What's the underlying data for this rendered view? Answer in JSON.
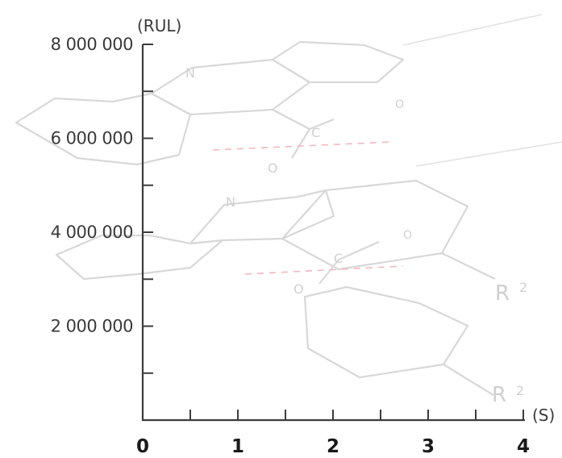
{
  "chart_data": {
    "type": "line",
    "title": "",
    "xlabel": "(S)",
    "ylabel": "(RUL)",
    "xlim": [
      0,
      4
    ],
    "ylim": [
      0,
      8000000
    ],
    "x_ticks": [
      0,
      1,
      2,
      3,
      4
    ],
    "x_tick_labels": [
      "0",
      "1",
      "2",
      "3",
      "4"
    ],
    "x_minor_step": 0.5,
    "y_ticks": [
      2000000,
      4000000,
      6000000,
      8000000
    ],
    "y_tick_labels": [
      "2 000 000",
      "4 000 000",
      "6 000 000",
      "8 000 000"
    ],
    "y_minor_step": 1000000,
    "grid": false,
    "series": []
  },
  "background": {
    "description_icon": "chemical-structure-watermark",
    "atom_labels": [
      "N",
      "C",
      "O",
      "O",
      "N",
      "C",
      "O",
      "O",
      "R",
      "2",
      "R",
      "2"
    ]
  }
}
